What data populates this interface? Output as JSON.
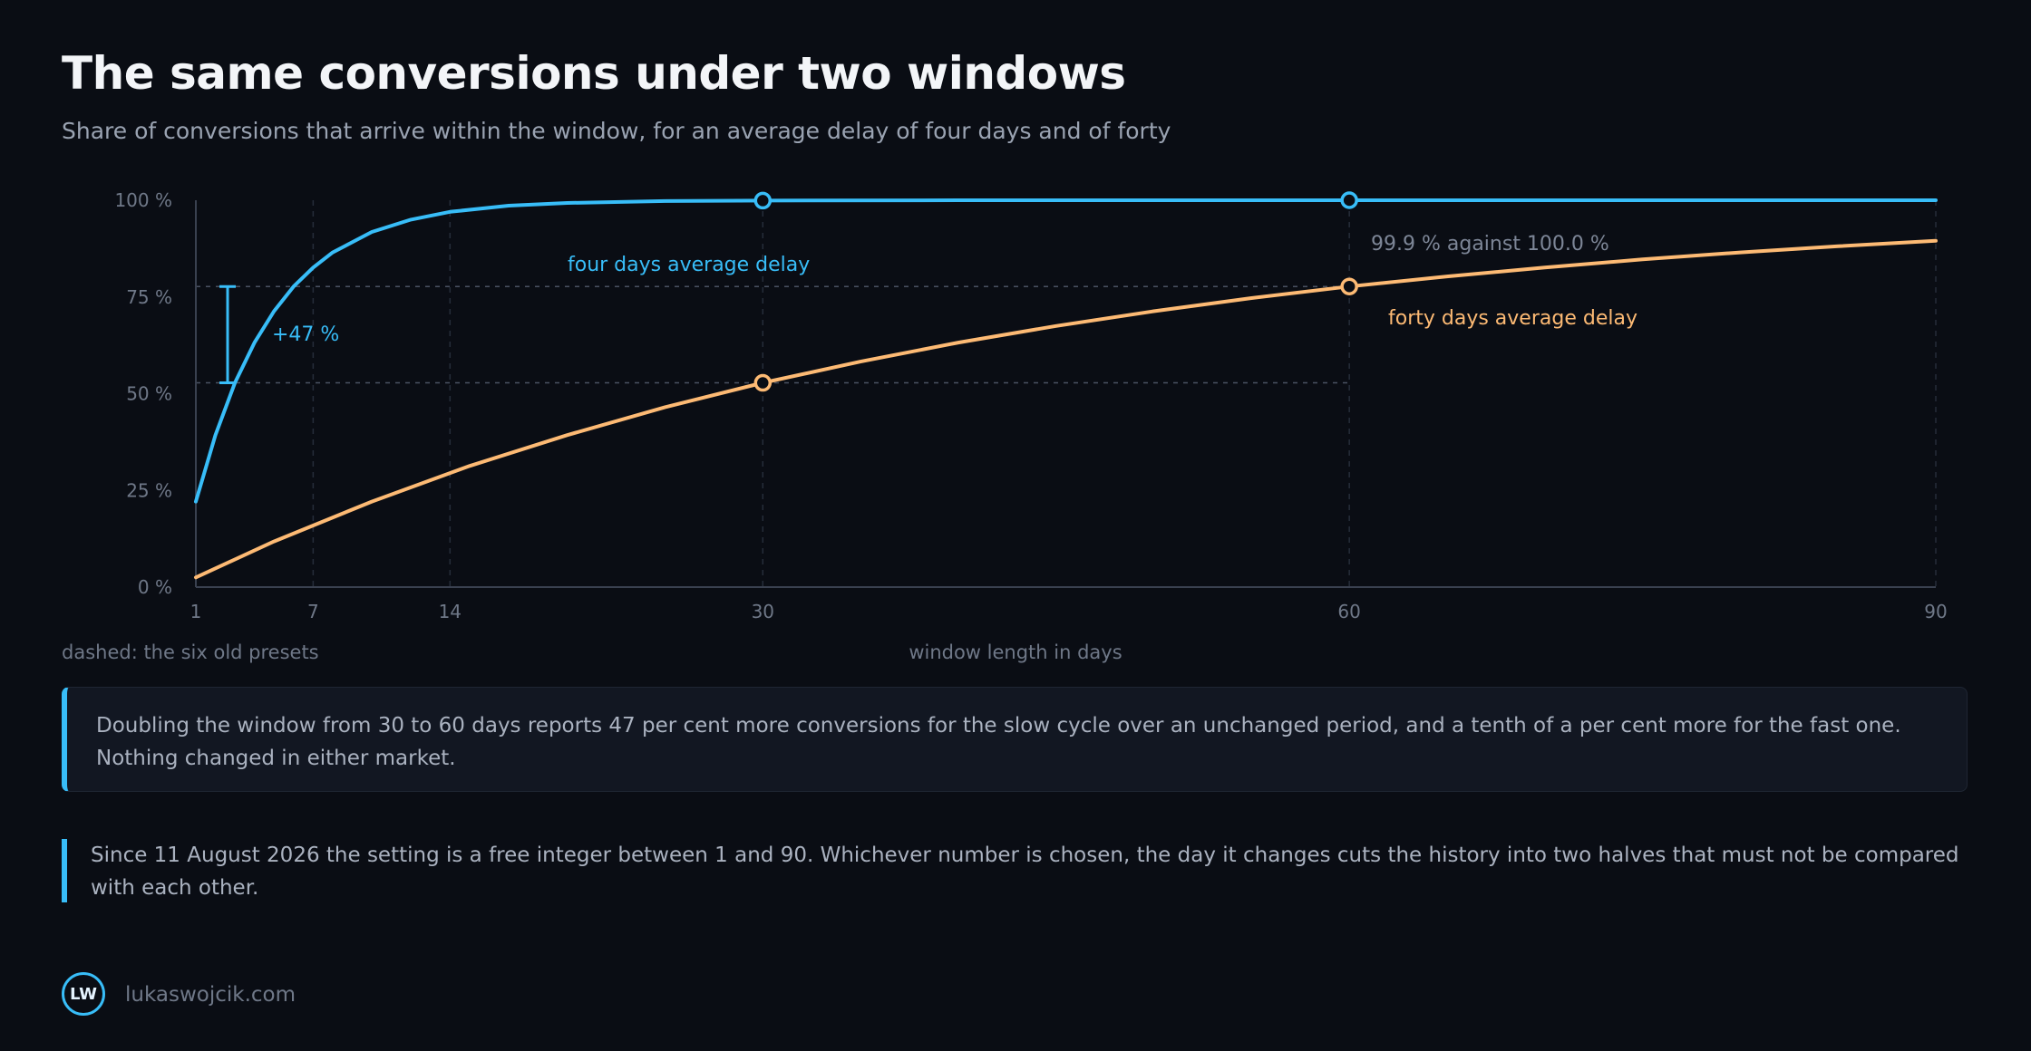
{
  "header": {
    "title": "The same conversions under two windows",
    "subtitle": "Share of conversions that arrive within the window, for an average delay of four days and of forty"
  },
  "chart_data": {
    "type": "line",
    "xlabel": "window length in days",
    "ylabel": "",
    "xlim": [
      1,
      90
    ],
    "ylim": [
      0,
      100
    ],
    "x_ticks": [
      1,
      7,
      14,
      30,
      60,
      90
    ],
    "y_ticks": [
      0,
      25,
      50,
      75,
      100
    ],
    "y_tick_labels": [
      "0 %",
      "25 %",
      "50 %",
      "75 %",
      "100 %"
    ],
    "grid": "dashed vertical lines at presets",
    "presets_note": "dashed: the six old presets",
    "series": [
      {
        "name": "four days average delay",
        "color": "#38bdf8",
        "mean_delay_days": 4,
        "x": [
          1,
          2,
          3,
          4,
          5,
          6,
          7,
          8,
          10,
          12,
          14,
          17,
          20,
          25,
          30,
          40,
          50,
          60,
          70,
          80,
          90
        ],
        "y": [
          22.1,
          39.3,
          52.8,
          63.2,
          71.3,
          77.7,
          82.6,
          86.5,
          91.8,
          95.0,
          97.0,
          98.6,
          99.3,
          99.8,
          99.9,
          100.0,
          100.0,
          100.0,
          100.0,
          100.0,
          100.0
        ],
        "markers": [
          {
            "x": 30,
            "y": 99.9
          },
          {
            "x": 60,
            "y": 100.0
          }
        ]
      },
      {
        "name": "forty days average delay",
        "color": "#fdba74",
        "mean_delay_days": 40,
        "x": [
          1,
          5,
          10,
          15,
          20,
          25,
          30,
          35,
          40,
          45,
          50,
          55,
          60,
          65,
          70,
          75,
          80,
          85,
          90
        ],
        "y": [
          2.5,
          11.8,
          22.1,
          31.3,
          39.3,
          46.5,
          52.8,
          58.3,
          63.2,
          67.5,
          71.3,
          74.7,
          77.7,
          80.3,
          82.6,
          84.7,
          86.5,
          88.1,
          89.5
        ],
        "markers": [
          {
            "x": 30,
            "y": 52.8
          },
          {
            "x": 60,
            "y": 77.7
          }
        ]
      }
    ],
    "annotations": {
      "gap_label": "+47 %",
      "gap_from": 52.8,
      "gap_to": 77.7,
      "compare_label": "99.9 % against 100.0 %"
    }
  },
  "callouts": {
    "primary": "Doubling the window from 30 to 60 days reports 47 per cent more conversions for the slow cycle over an unchanged period, and a tenth of a per cent more for the fast one. Nothing changed in either market.",
    "secondary": "Since 11 August 2026 the setting is a free integer between 1 and 90. Whichever number is chosen, the day it changes cuts the history into two halves that must not be compared with each other."
  },
  "footer": {
    "logo_text": "LW",
    "site": "lukaswojcik.com"
  }
}
